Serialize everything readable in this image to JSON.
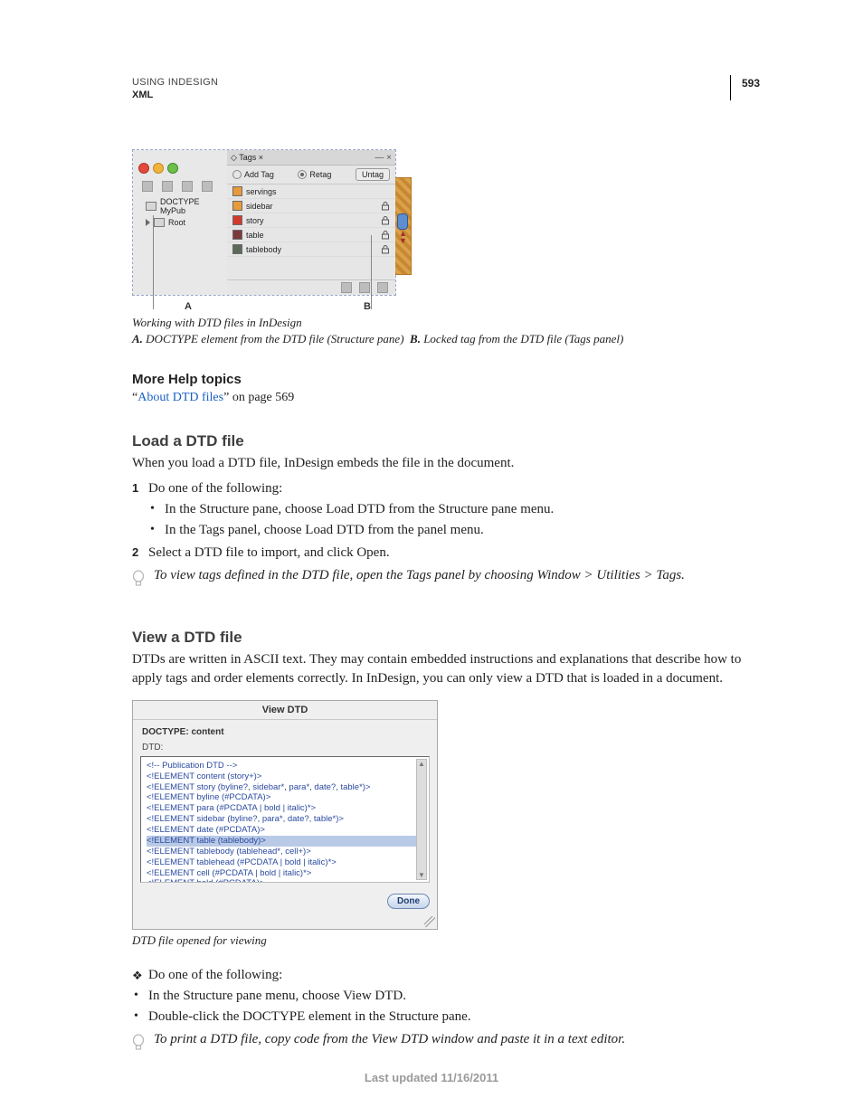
{
  "header": {
    "running": "USING INDESIGN",
    "sub": "XML",
    "page_number": "593"
  },
  "figure1": {
    "structure": {
      "doctype": "DOCTYPE MyPub",
      "root": "Root"
    },
    "tags_panel": {
      "title": "◇ Tags ×",
      "add_tag": "Add Tag",
      "retag": "Retag",
      "untag": "Untag",
      "items": [
        {
          "label": "servings",
          "swatch": "#e79a3a",
          "locked": false
        },
        {
          "label": "sidebar",
          "swatch": "#e79a3a",
          "locked": true
        },
        {
          "label": "story",
          "swatch": "#d23a2e",
          "locked": true
        },
        {
          "label": "table",
          "swatch": "#7b3b3b",
          "locked": true
        },
        {
          "label": "tablebody",
          "swatch": "#5a6b5a",
          "locked": true
        }
      ]
    },
    "labels": {
      "a": "A",
      "b": "B"
    },
    "caption": "Working with DTD files in InDesign",
    "key": {
      "a_bold": "A.",
      "a_text": " DOCTYPE element from the DTD file (Structure pane) ",
      "b_bold": "B.",
      "b_text": " Locked tag from the DTD file (Tags panel)"
    }
  },
  "more_help": {
    "heading": "More Help topics",
    "prefix": "“",
    "link": "About DTD files",
    "suffix": "” on page 569"
  },
  "load": {
    "heading": "Load a DTD file",
    "intro": "When you load a DTD file, InDesign embeds the file in the document.",
    "step1": "Do one of the following:",
    "bullet1": "In the Structure pane, choose Load DTD from the Structure pane menu.",
    "bullet2": "In the Tags panel, choose Load DTD from the panel menu.",
    "step2": "Select a DTD file to import, and click Open.",
    "tip": "To view tags defined in the DTD file, open the Tags panel by choosing Window > Utilities > Tags."
  },
  "view": {
    "heading": "View a DTD file",
    "intro": "DTDs are written in ASCII text. They may contain embedded instructions and explanations that describe how to apply tags and order elements correctly. In InDesign, you can only view a DTD that is loaded in a document."
  },
  "figure2": {
    "title": "View DTD",
    "doctype": "DOCTYPE: content",
    "label": "DTD:",
    "lines": [
      "<!-- Publication DTD -->",
      "<!ELEMENT content (story+)>",
      "<!ELEMENT story (byline?, sidebar*, para*, date?, table*)>",
      "<!ELEMENT byline (#PCDATA)>",
      "<!ELEMENT para (#PCDATA | bold | italic)*>",
      "<!ELEMENT sidebar (byline?, para*, date?, table*)>",
      "<!ELEMENT date (#PCDATA)>",
      "<!ELEMENT table (tablebody)>",
      "<!ELEMENT tablebody (tablehead*, cell+)>",
      "<!ELEMENT tablehead (#PCDATA | bold | italic)*>",
      "<!ELEMENT cell (#PCDATA | bold | italic)*>",
      "<!ELEMENT bold (#PCDATA)>"
    ],
    "selected_index": 7,
    "done": "Done",
    "caption": "DTD file opened for viewing"
  },
  "view_steps": {
    "lead": "Do one of the following:",
    "bullet1": "In the Structure pane menu, choose View DTD.",
    "bullet2": "Double-click the DOCTYPE element in the Structure pane.",
    "tip": "To print a DTD file, copy code from the View DTD window and paste it in a text editor."
  },
  "footer": {
    "updated": "Last updated 11/16/2011"
  }
}
